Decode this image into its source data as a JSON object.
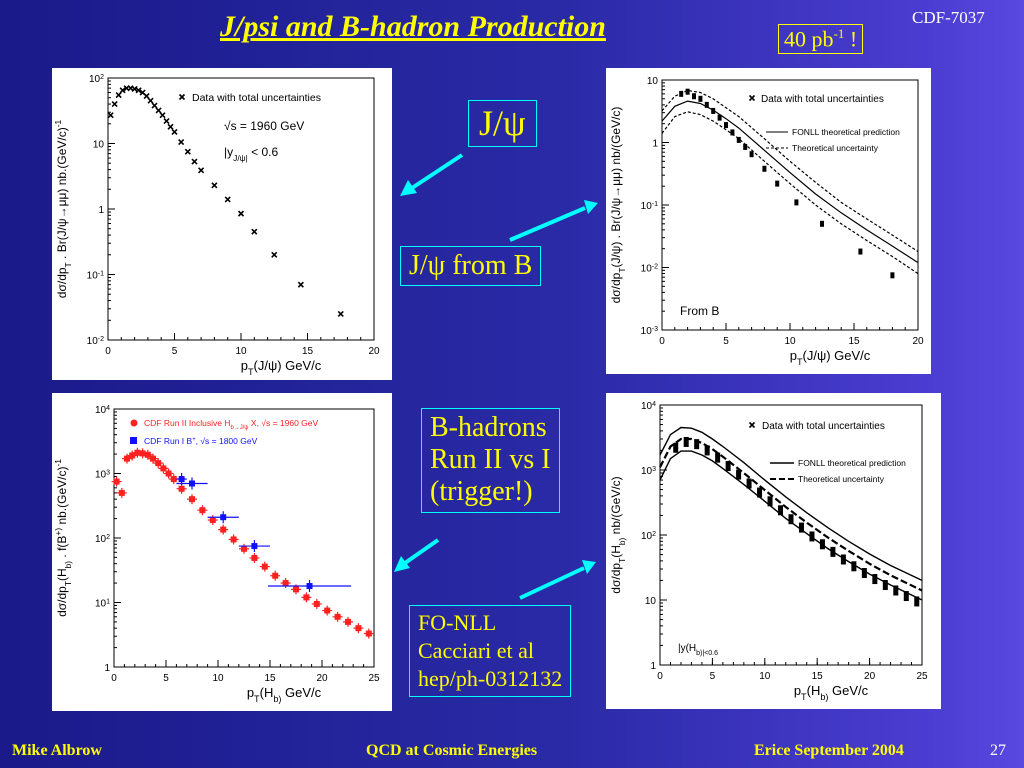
{
  "slide": {
    "title": "J/psi and B-hadron Production",
    "doc_id": "CDF-7037",
    "luminosity": {
      "base": "40 pb",
      "exp": "-1",
      "suffix": " !"
    },
    "footer": {
      "author": "Mike Albrow",
      "talk": "QCD at Cosmic Energies",
      "venue": "Erice September 2004",
      "page": "27"
    },
    "callouts": {
      "jpsi": "J/ψ",
      "jpsi_from_b": "J/ψ from B",
      "bhadrons": [
        "B-hadrons",
        "Run II vs I",
        "(trigger!)"
      ],
      "fonll": [
        "FO-NLL",
        "Cacciari et al",
        "hep/ph-0312132"
      ]
    },
    "colors": {
      "accent": "#ffff00",
      "box_border": "#00ffff",
      "arrow": "#00ffff",
      "cdf_run2": "#ff2020",
      "cdf_run1": "#1010ff"
    }
  },
  "chart_data": [
    {
      "id": "jpsi_inclusive",
      "type": "scatter",
      "xlabel": "p_T(J/ψ) GeV/c",
      "ylabel": "dσ/dp_T . Br(J/ψ→μμ) nb.(GeV/c)^-1",
      "xlim": [
        0,
        20
      ],
      "ylim": [
        0.01,
        100
      ],
      "log_y": true,
      "xticks": [
        0,
        5,
        10,
        15,
        20
      ],
      "yticks": [
        0.01,
        0.1,
        1,
        10,
        100
      ],
      "ytick_labels": [
        "10^-2",
        "10^-1",
        "1",
        "10",
        "10^2"
      ],
      "legend": "Data with total uncertainties",
      "annotations": [
        "√s = 1960 GeV",
        "|y_J/ψ| < 0.6"
      ],
      "series": [
        {
          "name": "Data with total uncertainties",
          "x": [
            0.2,
            0.5,
            0.8,
            1.1,
            1.4,
            1.7,
            2.0,
            2.3,
            2.6,
            2.9,
            3.2,
            3.5,
            3.8,
            4.1,
            4.4,
            4.7,
            5.0,
            5.5,
            6.0,
            6.5,
            7.0,
            8.0,
            9.0,
            10.0,
            11.0,
            12.5,
            14.5,
            17.5
          ],
          "y": [
            27,
            40,
            55,
            65,
            70,
            70,
            68,
            65,
            60,
            53,
            45,
            38,
            32,
            27,
            22,
            18,
            15,
            10.5,
            7.5,
            5.3,
            3.9,
            2.3,
            1.4,
            0.85,
            0.45,
            0.2,
            0.07,
            0.025
          ]
        }
      ]
    },
    {
      "id": "jpsi_from_b",
      "type": "scatter",
      "xlabel": "p_T(J/ψ) GeV/c",
      "ylabel": "dσ/dp_T(J/ψ) . Br(J/ψ→μμ) nb/(GeV/c)",
      "xlim": [
        0,
        20
      ],
      "ylim": [
        0.001,
        10
      ],
      "log_y": true,
      "xticks": [
        0,
        5,
        10,
        15,
        20
      ],
      "yticks": [
        0.001,
        0.01,
        0.1,
        1,
        10
      ],
      "ytick_labels": [
        "10^-3",
        "10^-2",
        "10^-1",
        "1",
        "10"
      ],
      "legend": [
        "Data with total uncertainties",
        "FONLL theoretical prediction",
        "Theoretical uncertainty"
      ],
      "annotation": "From B",
      "series": [
        {
          "name": "Data with total uncertainties",
          "x": [
            1.5,
            2.0,
            2.5,
            3.0,
            3.5,
            4.0,
            4.5,
            5.0,
            5.5,
            6.0,
            6.5,
            7.0,
            8.0,
            9.0,
            10.5,
            12.5,
            15.5,
            18.0
          ],
          "y": [
            6,
            6.5,
            5.5,
            5.0,
            4.0,
            3.2,
            2.5,
            1.9,
            1.45,
            1.1,
            0.85,
            0.65,
            0.38,
            0.22,
            0.11,
            0.05,
            0.018,
            0.0075
          ]
        },
        {
          "name": "FONLL theoretical prediction",
          "x": [
            0,
            1,
            2,
            3,
            4,
            5,
            6,
            8,
            10,
            12,
            14,
            16,
            18,
            20
          ],
          "y": [
            2.2,
            3.8,
            4.6,
            4.2,
            3.3,
            2.4,
            1.7,
            0.75,
            0.33,
            0.15,
            0.075,
            0.04,
            0.022,
            0.012
          ]
        },
        {
          "name": "Theoretical uncertainty (upper)",
          "x": [
            0,
            1,
            2,
            3,
            4,
            5,
            6,
            8,
            10,
            12,
            14,
            16,
            18,
            20
          ],
          "y": [
            3.2,
            5.5,
            6.8,
            6.3,
            5.0,
            3.6,
            2.6,
            1.15,
            0.5,
            0.23,
            0.11,
            0.06,
            0.033,
            0.018
          ]
        },
        {
          "name": "Theoretical uncertainty (lower)",
          "x": [
            0,
            1,
            2,
            3,
            4,
            5,
            6,
            8,
            10,
            12,
            14,
            16,
            18,
            20
          ],
          "y": [
            1.4,
            2.6,
            3.1,
            2.8,
            2.2,
            1.6,
            1.15,
            0.5,
            0.22,
            0.1,
            0.05,
            0.027,
            0.015,
            0.008
          ]
        }
      ]
    },
    {
      "id": "bhadron_run2_vs_run1",
      "type": "scatter",
      "xlabel": "p_T(H_b) GeV/c",
      "ylabel": "dσ/dp_T(H_b) . f(B^+) nb.(GeV/c)^-1",
      "xlim": [
        0,
        25
      ],
      "ylim": [
        1,
        10000
      ],
      "log_y": true,
      "xticks": [
        0,
        5,
        10,
        15,
        20,
        25
      ],
      "yticks": [
        1,
        10,
        100,
        1000,
        10000
      ],
      "ytick_labels": [
        "1",
        "10^1",
        "10^2",
        "10^3",
        "10^4"
      ],
      "series": [
        {
          "name": "CDF Run II Inclusive H_b→J/ψ X, √s = 1960 GeV",
          "x": [
            0.25,
            0.75,
            1.25,
            1.75,
            2.25,
            2.75,
            3.25,
            3.75,
            4.25,
            4.75,
            5.25,
            5.75,
            6.5,
            7.5,
            8.5,
            9.5,
            10.5,
            11.5,
            12.5,
            13.5,
            14.5,
            15.5,
            16.5,
            17.5,
            18.5,
            19.5,
            20.5,
            21.5,
            22.5,
            23.5,
            24.5
          ],
          "y": [
            750,
            500,
            1700,
            1900,
            2100,
            2050,
            1950,
            1700,
            1450,
            1200,
            1000,
            820,
            580,
            400,
            270,
            190,
            135,
            95,
            68,
            49,
            36,
            26,
            20,
            16,
            12,
            9.5,
            7.5,
            6.0,
            5.0,
            4.0,
            3.3
          ]
        },
        {
          "name": "CDF Run I B^+, √s = 1800 GeV",
          "x": [
            6.5,
            7.5,
            10.5,
            13.5,
            18.8
          ],
          "y": [
            820,
            700,
            210,
            75,
            18
          ],
          "xerr": [
            0.5,
            1.5,
            1.5,
            1.5,
            4.0
          ]
        }
      ]
    },
    {
      "id": "bhadron_fonll",
      "type": "scatter",
      "xlabel": "p_T(H_b) GeV/c",
      "ylabel": "dσ/dp_T(H_b) nb/(GeV/c)",
      "xlim": [
        0,
        25
      ],
      "ylim": [
        1,
        10000
      ],
      "log_y": true,
      "xticks": [
        0,
        5,
        10,
        15,
        20,
        25
      ],
      "yticks": [
        1,
        10,
        100,
        1000,
        10000
      ],
      "ytick_labels": [
        "1",
        "10",
        "10^2",
        "10^3",
        "10^4"
      ],
      "legend": [
        "Data with total uncertainties",
        "FONLL theoretical prediction",
        "Theoretical uncertainty"
      ],
      "annotation": "|y(H_b)|<0.6",
      "series": [
        {
          "name": "Data with total uncertainties",
          "x": [
            1.5,
            2.5,
            3.5,
            4.5,
            5.5,
            6.5,
            7.5,
            8.5,
            9.5,
            10.5,
            11.5,
            12.5,
            13.5,
            14.5,
            15.5,
            16.5,
            17.5,
            18.5,
            19.5,
            20.5,
            21.5,
            22.5,
            23.5,
            24.5
          ],
          "y": [
            2200,
            2700,
            2500,
            2000,
            1550,
            1150,
            850,
            620,
            450,
            330,
            240,
            175,
            130,
            95,
            72,
            55,
            42,
            33,
            26,
            21,
            17,
            14,
            11.5,
            9.5
          ]
        },
        {
          "name": "FONLL theoretical prediction",
          "x": [
            0,
            1,
            2,
            3,
            4,
            5,
            6,
            8,
            10,
            12,
            14,
            16,
            18,
            20,
            22,
            25
          ],
          "y": [
            1100,
            2300,
            3000,
            3000,
            2600,
            2100,
            1600,
            900,
            490,
            270,
            155,
            92,
            57,
            36,
            24,
            14
          ]
        },
        {
          "name": "Theoretical uncertainty (upper)",
          "x": [
            0,
            1,
            2,
            3,
            4,
            5,
            6,
            8,
            10,
            12,
            14,
            16,
            18,
            20,
            22,
            25
          ],
          "y": [
            1700,
            3500,
            4500,
            4400,
            3800,
            3000,
            2300,
            1300,
            700,
            385,
            220,
            130,
            80,
            51,
            34,
            20
          ]
        },
        {
          "name": "Theoretical uncertainty (lower)",
          "x": [
            0,
            1,
            2,
            3,
            4,
            5,
            6,
            8,
            10,
            12,
            14,
            16,
            18,
            20,
            22,
            25
          ],
          "y": [
            700,
            1500,
            1950,
            1950,
            1700,
            1380,
            1050,
            600,
            330,
            180,
            105,
            62,
            39,
            25,
            17,
            10
          ]
        }
      ]
    }
  ]
}
